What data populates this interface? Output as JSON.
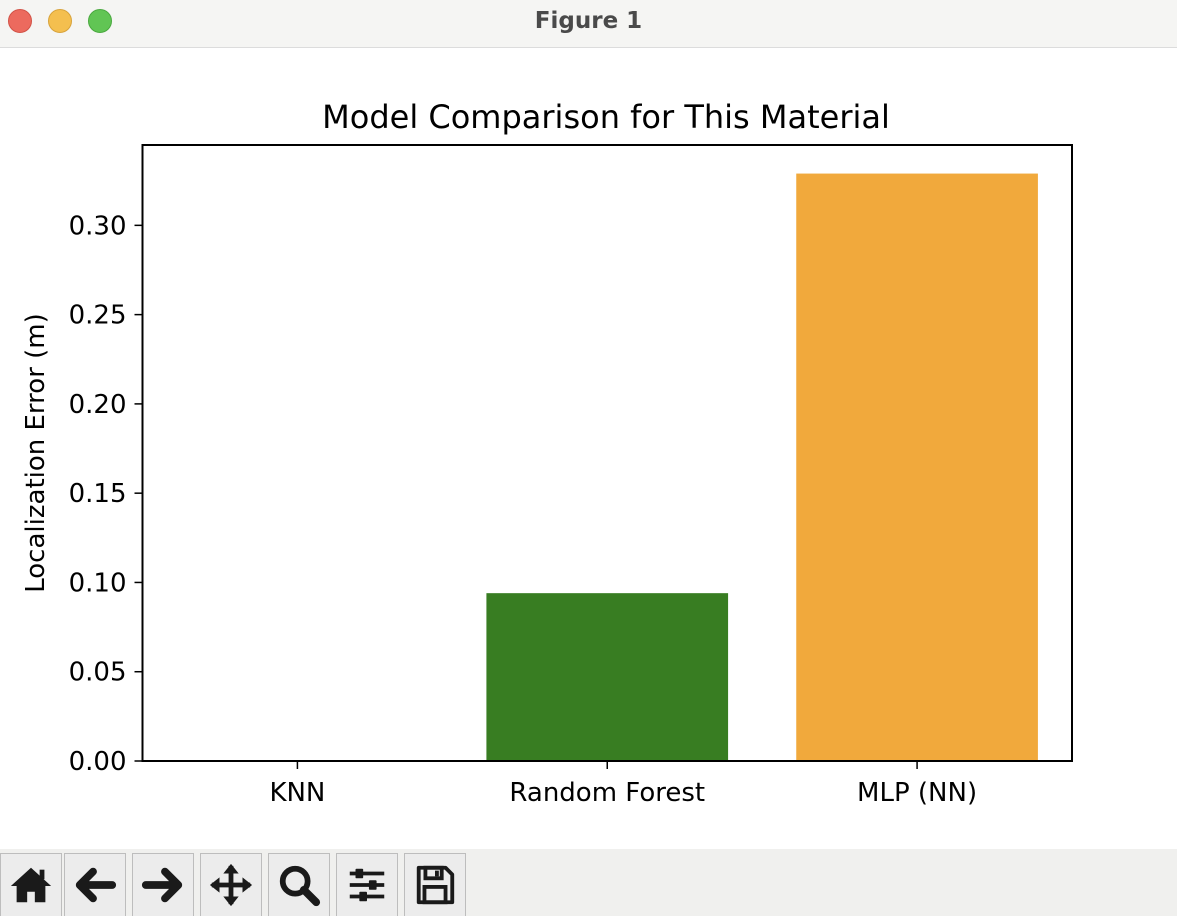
{
  "window": {
    "title": "Figure 1"
  },
  "toolbar": {
    "buttons": [
      {
        "name": "home",
        "icon": "home-icon"
      },
      {
        "name": "back",
        "icon": "arrow-left-icon"
      },
      {
        "name": "forward",
        "icon": "arrow-right-icon"
      },
      {
        "name": "pan",
        "icon": "move-icon"
      },
      {
        "name": "zoom",
        "icon": "zoom-icon"
      },
      {
        "name": "configure-subplots",
        "icon": "sliders-icon"
      },
      {
        "name": "save",
        "icon": "save-icon"
      }
    ]
  },
  "chart_data": {
    "type": "bar",
    "title": "Model Comparison for This Material",
    "xlabel": "",
    "ylabel": "Localization Error (m)",
    "categories": [
      "KNN",
      "Random Forest",
      "MLP (NN)"
    ],
    "values": [
      0.0,
      0.094,
      0.329
    ],
    "colors": [
      "#1f77b4",
      "#387d22",
      "#f1a93c"
    ],
    "ylim": [
      0,
      0.345
    ],
    "yticks": [
      0.0,
      0.05,
      0.1,
      0.15,
      0.2,
      0.25,
      0.3
    ],
    "ytick_labels": [
      "0.00",
      "0.05",
      "0.10",
      "0.15",
      "0.20",
      "0.25",
      "0.30"
    ],
    "grid": false,
    "legend": false
  }
}
